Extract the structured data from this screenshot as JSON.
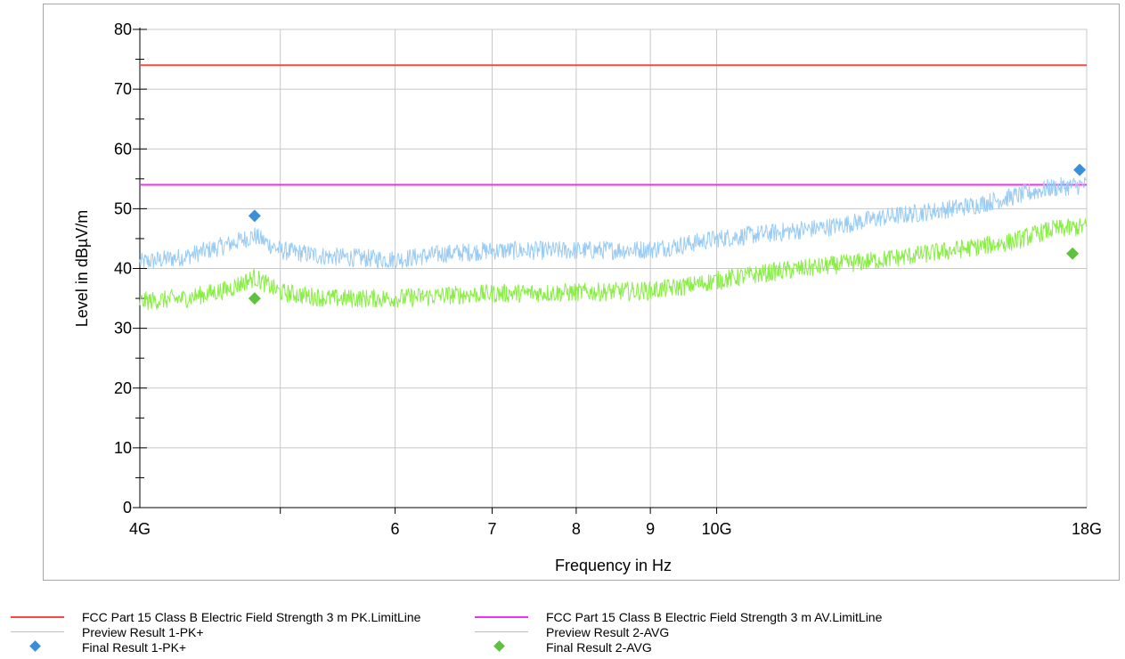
{
  "chart_data": {
    "type": "line",
    "xlabel": "Frequency in Hz",
    "ylabel": "Level in dBµV/m",
    "x_scale": "log",
    "xlim": [
      4000000000,
      18000000000
    ],
    "ylim": [
      0,
      80
    ],
    "x_ticks": [
      {
        "value": 4000000000,
        "label": "4G"
      },
      {
        "value": 6000000000,
        "label": "6"
      },
      {
        "value": 7000000000,
        "label": "7"
      },
      {
        "value": 8000000000,
        "label": "8"
      },
      {
        "value": 9000000000,
        "label": "9"
      },
      {
        "value": 10000000000,
        "label": "10G"
      },
      {
        "value": 18000000000,
        "label": "18G"
      }
    ],
    "x_gridlines": [
      5000000000,
      6000000000,
      7000000000,
      8000000000,
      9000000000,
      10000000000
    ],
    "y_ticks": [
      0,
      10,
      20,
      30,
      40,
      50,
      60,
      70,
      80
    ],
    "grid": true,
    "series": [
      {
        "name": "FCC Part 15 Class B Electric Field Strength 3 m PK.LimitLine",
        "kind": "line",
        "color": "#ff4444",
        "x": [
          4000000000,
          18000000000
        ],
        "values": [
          74,
          74
        ]
      },
      {
        "name": "FCC Part 15 Class B Electric Field Strength 3 m AV.LimitLine",
        "kind": "line",
        "color": "#ee33ee",
        "x": [
          4000000000,
          18000000000
        ],
        "values": [
          54,
          54
        ]
      },
      {
        "name": "Preview Result 1-PK+",
        "kind": "line",
        "color": "#99ccf5",
        "x": [
          4000000000,
          4300000000,
          4600000000,
          4800000000,
          5000000000,
          5400000000,
          6000000000,
          6500000000,
          7000000000,
          8000000000,
          9000000000,
          9500000000,
          10000000000,
          11000000000,
          12000000000,
          13000000000,
          14000000000,
          15000000000,
          16000000000,
          17000000000,
          18000000000
        ],
        "values": [
          41,
          42,
          44,
          45.5,
          43,
          42,
          41.5,
          42.5,
          43,
          43,
          43.2,
          44,
          45,
          46,
          47,
          48.5,
          49.5,
          50.5,
          52,
          53.5,
          54
        ]
      },
      {
        "name": "Preview Result 2-AVG",
        "kind": "line",
        "color": "#88ee44",
        "x": [
          4000000000,
          4300000000,
          4600000000,
          4800000000,
          5000000000,
          5400000000,
          6000000000,
          6500000000,
          7000000000,
          8000000000,
          9000000000,
          9500000000,
          10000000000,
          11000000000,
          12000000000,
          13000000000,
          14000000000,
          15000000000,
          16000000000,
          17000000000,
          18000000000
        ],
        "values": [
          34.5,
          35,
          36.5,
          38.5,
          36,
          35,
          35,
          35.5,
          35.8,
          36,
          36.3,
          37,
          38,
          39.5,
          40.5,
          41.5,
          42.5,
          43.5,
          44.5,
          46.5,
          47
        ]
      },
      {
        "name": "Final Result 1-PK+",
        "kind": "marker",
        "color": "#3b8fd9",
        "x": [
          4800000000,
          17800000000
        ],
        "values": [
          48.8,
          56.5
        ]
      },
      {
        "name": "Final Result 2-AVG",
        "kind": "marker",
        "color": "#5fc23c",
        "x": [
          4800000000,
          17600000000
        ],
        "values": [
          35,
          42.5
        ]
      }
    ]
  }
}
